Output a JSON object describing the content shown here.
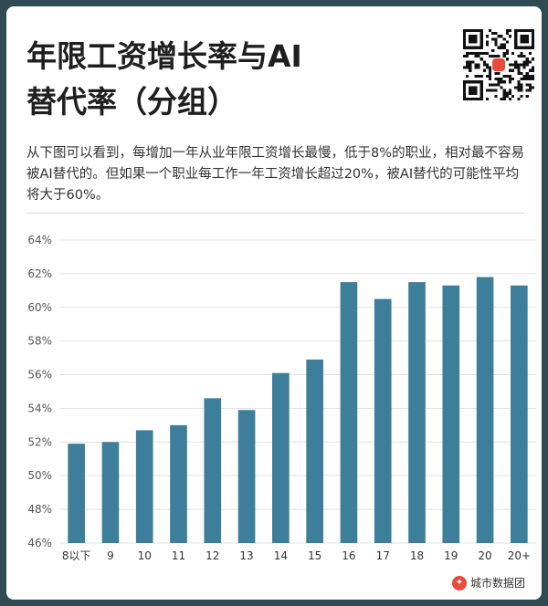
{
  "header": {
    "title": "年限工资增长率与AI替代率（分组）",
    "description": "从下图可以看到，每增加一年从业年限工资增长最慢，低于8%的职业，相对最不容易被AI替代的。但如果一个职业每工作一年工资增长超过20%，被AI替代的可能性平均将大于60%。"
  },
  "brand": {
    "name": "城市数据团"
  },
  "colors": {
    "bar": "#3d7e9a",
    "grid": "#e3e3e3"
  },
  "chart_data": {
    "type": "bar",
    "categories": [
      "8以下",
      "9",
      "10",
      "11",
      "12",
      "13",
      "14",
      "15",
      "16",
      "17",
      "18",
      "19",
      "20",
      "20+"
    ],
    "values": [
      51.9,
      52.0,
      52.7,
      53.0,
      54.6,
      53.9,
      56.1,
      56.9,
      61.5,
      60.5,
      61.5,
      61.3,
      61.8,
      61.3
    ],
    "ylim": [
      46,
      64
    ],
    "yticks": [
      "46%",
      "48%",
      "50%",
      "52%",
      "54%",
      "56%",
      "58%",
      "60%",
      "62%",
      "64%"
    ],
    "grid": true,
    "legend": "none",
    "title": "",
    "xlabel": "",
    "ylabel": ""
  }
}
